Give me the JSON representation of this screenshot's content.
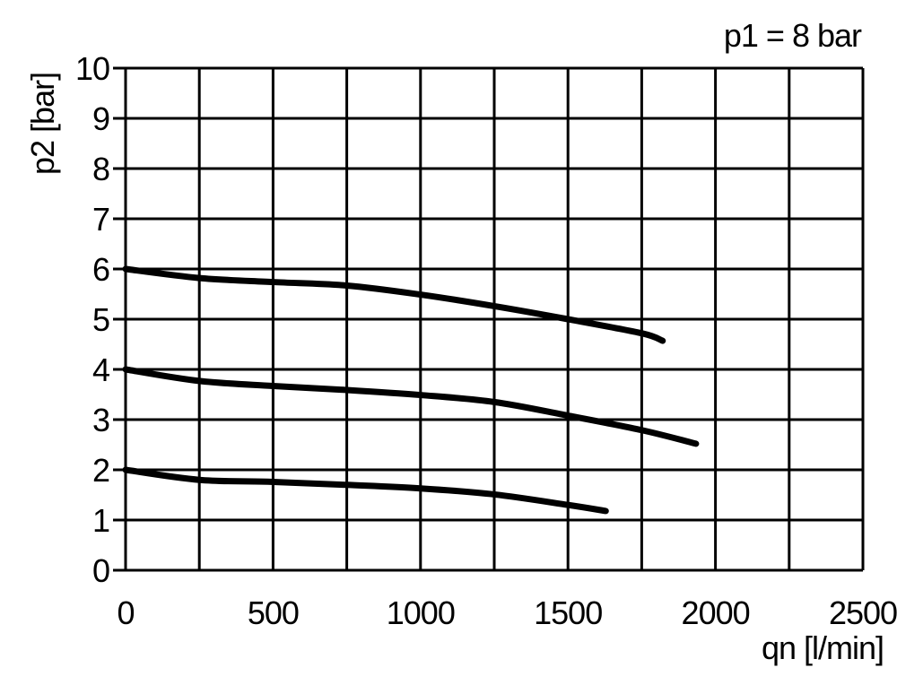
{
  "chart_data": {
    "type": "line",
    "title": "",
    "annotation": "p1 = 8 bar",
    "xlabel": "qn [l/min]",
    "ylabel": "p2 [bar]",
    "xlim": [
      0,
      2500
    ],
    "ylim": [
      0,
      10
    ],
    "xticks": [
      "0",
      "500",
      "1000",
      "1500",
      "2000",
      "2500"
    ],
    "yticks": [
      "0",
      "1",
      "2",
      "3",
      "4",
      "5",
      "6",
      "7",
      "8",
      "9",
      "10"
    ],
    "grid": true,
    "grid_x_step": 250,
    "grid_y_step": 1,
    "line_color": "#000000",
    "series": [
      {
        "x": [
          0,
          250,
          500,
          750,
          1000,
          1250,
          1500,
          1750,
          1821
        ],
        "y": [
          6.0,
          5.82,
          5.74,
          5.67,
          5.49,
          5.26,
          5.0,
          4.72,
          4.57
        ]
      },
      {
        "x": [
          0,
          250,
          500,
          750,
          1000,
          1250,
          1500,
          1750,
          1934
        ],
        "y": [
          4.0,
          3.77,
          3.67,
          3.59,
          3.49,
          3.35,
          3.08,
          2.79,
          2.52
        ]
      },
      {
        "x": [
          0,
          250,
          500,
          750,
          1000,
          1250,
          1500,
          1628
        ],
        "y": [
          2.0,
          1.8,
          1.76,
          1.7,
          1.63,
          1.51,
          1.3,
          1.18
        ]
      }
    ]
  }
}
